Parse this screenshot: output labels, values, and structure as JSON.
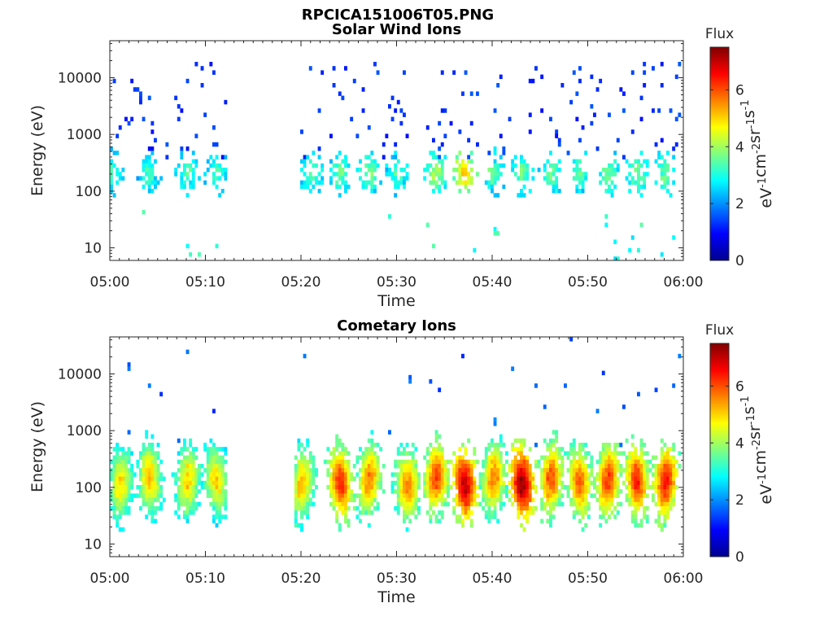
{
  "figure_title": "RPCICA151006T05.PNG",
  "colors": {
    "colormap": [
      "#00008f",
      "#0000ff",
      "#0080ff",
      "#00ffff",
      "#80ff80",
      "#ffff00",
      "#ff8000",
      "#ff0000",
      "#800000"
    ],
    "axes": "#262626",
    "background": "#ffffff"
  },
  "chart_data": [
    {
      "type": "heatmap",
      "title": "Solar Wind Ions",
      "xlabel": "Time",
      "ylabel": "Energy (eV)",
      "x_tick_labels": [
        "05:00",
        "05:10",
        "05:20",
        "05:30",
        "05:40",
        "05:50",
        "06:00"
      ],
      "x_range": [
        "05:00",
        "06:00"
      ],
      "y_scale": "log",
      "y_tick_labels": [
        "10",
        "100",
        "1000",
        "10000"
      ],
      "y_range": [
        6,
        45000
      ],
      "data_gap": [
        "05:12",
        "05:19"
      ],
      "colorbar": {
        "title": "Flux",
        "label": "eV-1cm-2sr-1s-1",
        "ticks": [
          "0",
          "2",
          "4",
          "6"
        ],
        "range": [
          0,
          7.5
        ]
      },
      "bursts": [
        {
          "t": "05:00",
          "flux": 3.0
        },
        {
          "t": "05:04",
          "flux": 3.0
        },
        {
          "t": "05:08",
          "flux": 3.1
        },
        {
          "t": "05:11",
          "flux": 3.0
        },
        {
          "t": "05:21",
          "flux": 3.1
        },
        {
          "t": "05:24",
          "flux": 3.3
        },
        {
          "t": "05:27",
          "flux": 3.3
        },
        {
          "t": "05:30",
          "flux": 3.1
        },
        {
          "t": "05:34",
          "flux": 3.6
        },
        {
          "t": "05:37",
          "flux": 4.6
        },
        {
          "t": "05:40",
          "flux": 3.2
        },
        {
          "t": "05:43",
          "flux": 3.4
        },
        {
          "t": "05:46",
          "flux": 3.3
        },
        {
          "t": "05:49",
          "flux": 3.1
        },
        {
          "t": "05:52",
          "flux": 3.3
        },
        {
          "t": "05:55",
          "flux": 3.4
        },
        {
          "t": "05:58",
          "flux": 3.3
        }
      ]
    },
    {
      "type": "heatmap",
      "title": "Cometary Ions",
      "xlabel": "Time",
      "ylabel": "Energy (eV)",
      "x_tick_labels": [
        "05:00",
        "05:10",
        "05:20",
        "05:30",
        "05:40",
        "05:50",
        "06:00"
      ],
      "x_range": [
        "05:00",
        "06:00"
      ],
      "y_scale": "log",
      "y_tick_labels": [
        "10",
        "100",
        "1000",
        "10000"
      ],
      "y_range": [
        6,
        45000
      ],
      "data_gap": [
        "05:12",
        "05:19"
      ],
      "colorbar": {
        "title": "Flux",
        "label": "eV-1cm-2sr-1s-1",
        "ticks": [
          "0",
          "2",
          "4",
          "6"
        ],
        "range": [
          0,
          7.5
        ]
      },
      "bursts": [
        {
          "t": "05:01",
          "flux": 4.4
        },
        {
          "t": "05:04",
          "flux": 4.6
        },
        {
          "t": "05:08",
          "flux": 4.5
        },
        {
          "t": "05:11",
          "flux": 4.4
        },
        {
          "t": "05:20",
          "flux": 4.6
        },
        {
          "t": "05:24",
          "flux": 5.6
        },
        {
          "t": "05:27",
          "flux": 5.0
        },
        {
          "t": "05:31",
          "flux": 5.0
        },
        {
          "t": "05:34",
          "flux": 5.4
        },
        {
          "t": "05:37",
          "flux": 6.3
        },
        {
          "t": "05:40",
          "flux": 5.0
        },
        {
          "t": "05:43",
          "flux": 6.5
        },
        {
          "t": "05:46",
          "flux": 5.3
        },
        {
          "t": "05:49",
          "flux": 5.2
        },
        {
          "t": "05:52",
          "flux": 5.5
        },
        {
          "t": "05:55",
          "flux": 5.6
        },
        {
          "t": "05:58",
          "flux": 5.8
        }
      ]
    }
  ]
}
